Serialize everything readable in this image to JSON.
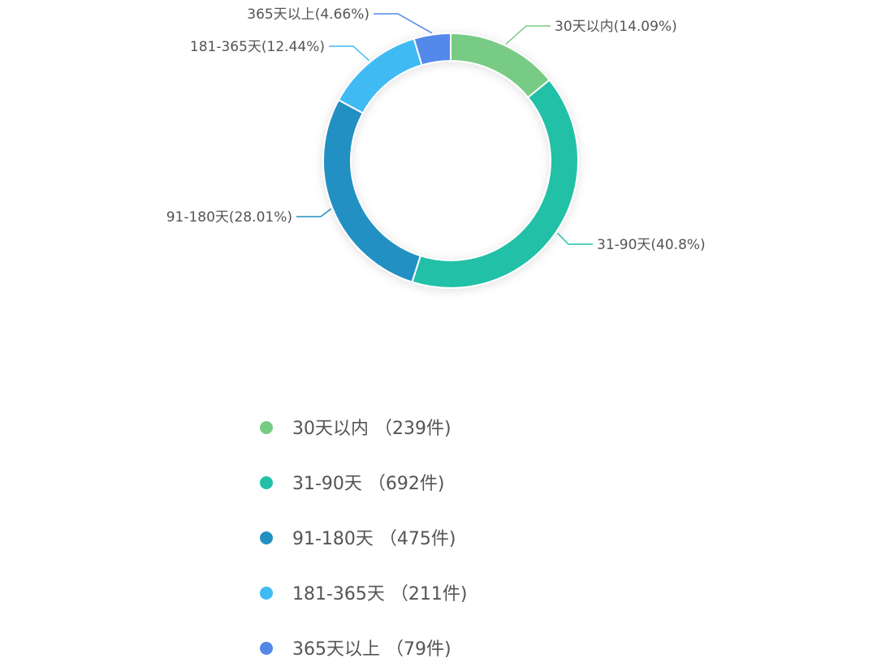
{
  "chart_data": {
    "type": "pie",
    "style": "donut",
    "title": "",
    "categories": [
      "30天以内",
      "31-90天",
      "91-180天",
      "181-365天",
      "365天以上"
    ],
    "values": [
      239,
      692,
      475,
      211,
      79
    ],
    "percent_labels": [
      "30天以内(14.09%)",
      "31-90天(40.8%)",
      "91-180天(28.01%)",
      "181-365天(12.44%)",
      "365天以上(4.66%)"
    ],
    "legend_labels": [
      "30天以内 （239件)",
      "31-90天 （692件)",
      "91-180天 （475件)",
      "181-365天 （211件)",
      "365天以上 （79件)"
    ],
    "colors": [
      "#78cb84",
      "#22c1a7",
      "#2390c2",
      "#40baf3",
      "#5289e8"
    ],
    "legend_position": "bottom"
  }
}
